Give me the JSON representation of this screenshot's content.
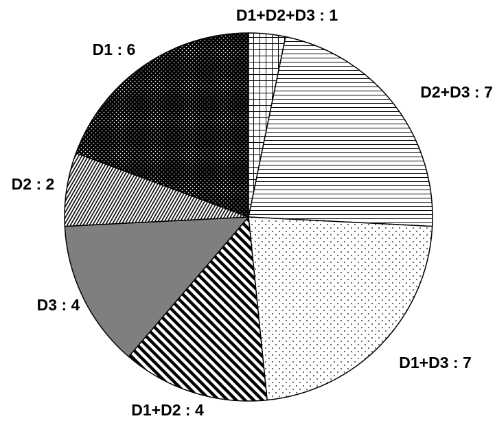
{
  "chart_data": {
    "type": "pie",
    "start_angle_deg": 0,
    "direction": "clockwise",
    "slices": [
      {
        "name": "D1+D2+D3",
        "value": 1,
        "label": "D1+D2+D3 : 1",
        "pattern": "grid"
      },
      {
        "name": "D2+D3",
        "value": 7,
        "label": "D2+D3 : 7",
        "pattern": "horizontal-lines"
      },
      {
        "name": "D1+D3",
        "value": 7,
        "label": "D1+D3 : 7",
        "pattern": "sparse-dots"
      },
      {
        "name": "D1+D2",
        "value": 4,
        "label": "D1+D2 : 4",
        "pattern": "diagonal-stripes"
      },
      {
        "name": "D3",
        "value": 4,
        "label": "D3 : 4",
        "pattern": "solid-gray"
      },
      {
        "name": "D2",
        "value": 2,
        "label": "D2 : 2",
        "pattern": "fine-diagonal-hatch"
      },
      {
        "name": "D1",
        "value": 6,
        "label": "D1 : 6",
        "pattern": "dense-dots-dark"
      }
    ],
    "colors": {
      "outline": "#000000",
      "gray": "#7f7f7f",
      "background": "#ffffff"
    }
  }
}
